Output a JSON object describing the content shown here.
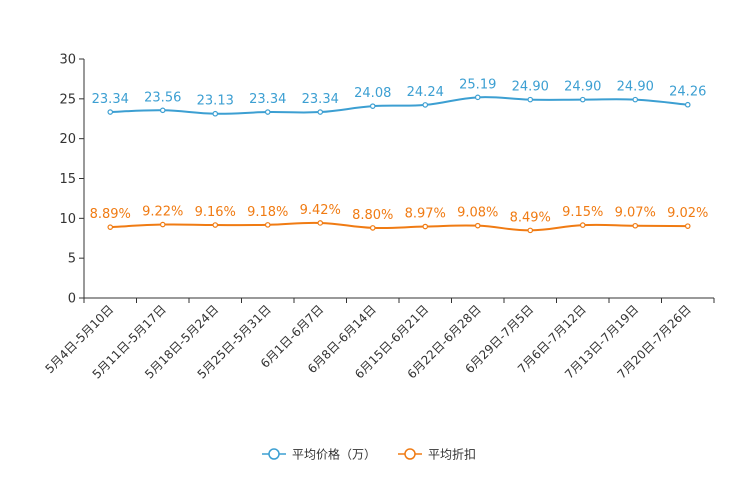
{
  "chart_data": {
    "type": "line",
    "categories": [
      "5月4日-5月10日",
      "5月11日-5月17日",
      "5月18日-5月24日",
      "5月25日-5月31日",
      "6月1日-6月7日",
      "6月8日-6月14日",
      "6月15日-6月21日",
      "6月22日-6月28日",
      "6月29日-7月5日",
      "7月6日-7月12日",
      "7月13日-7月19日",
      "7月20日-7月26日"
    ],
    "ylim": [
      0,
      30
    ],
    "yticks": [
      0,
      5,
      10,
      15,
      20,
      25,
      30
    ],
    "legend_position": "bottom-center",
    "series": [
      {
        "name": "平均价格（万）",
        "color": "#3c9fd2",
        "values": [
          23.34,
          23.56,
          23.13,
          23.34,
          23.34,
          24.08,
          24.24,
          25.19,
          24.9,
          24.9,
          24.9,
          24.26
        ],
        "labels": [
          "23.34",
          "23.56",
          "23.13",
          "23.34",
          "23.34",
          "24.08",
          "24.24",
          "25.19",
          "24.90",
          "24.90",
          "24.90",
          "24.26"
        ]
      },
      {
        "name": "平均折扣",
        "color": "#f07b13",
        "values": [
          8.89,
          9.22,
          9.16,
          9.18,
          9.42,
          8.8,
          8.97,
          9.08,
          8.49,
          9.15,
          9.07,
          9.02
        ],
        "labels": [
          "8.89%",
          "9.22%",
          "9.16%",
          "9.18%",
          "9.42%",
          "8.80%",
          "8.97%",
          "9.08%",
          "8.49%",
          "9.15%",
          "9.07%",
          "9.02%"
        ]
      }
    ]
  }
}
